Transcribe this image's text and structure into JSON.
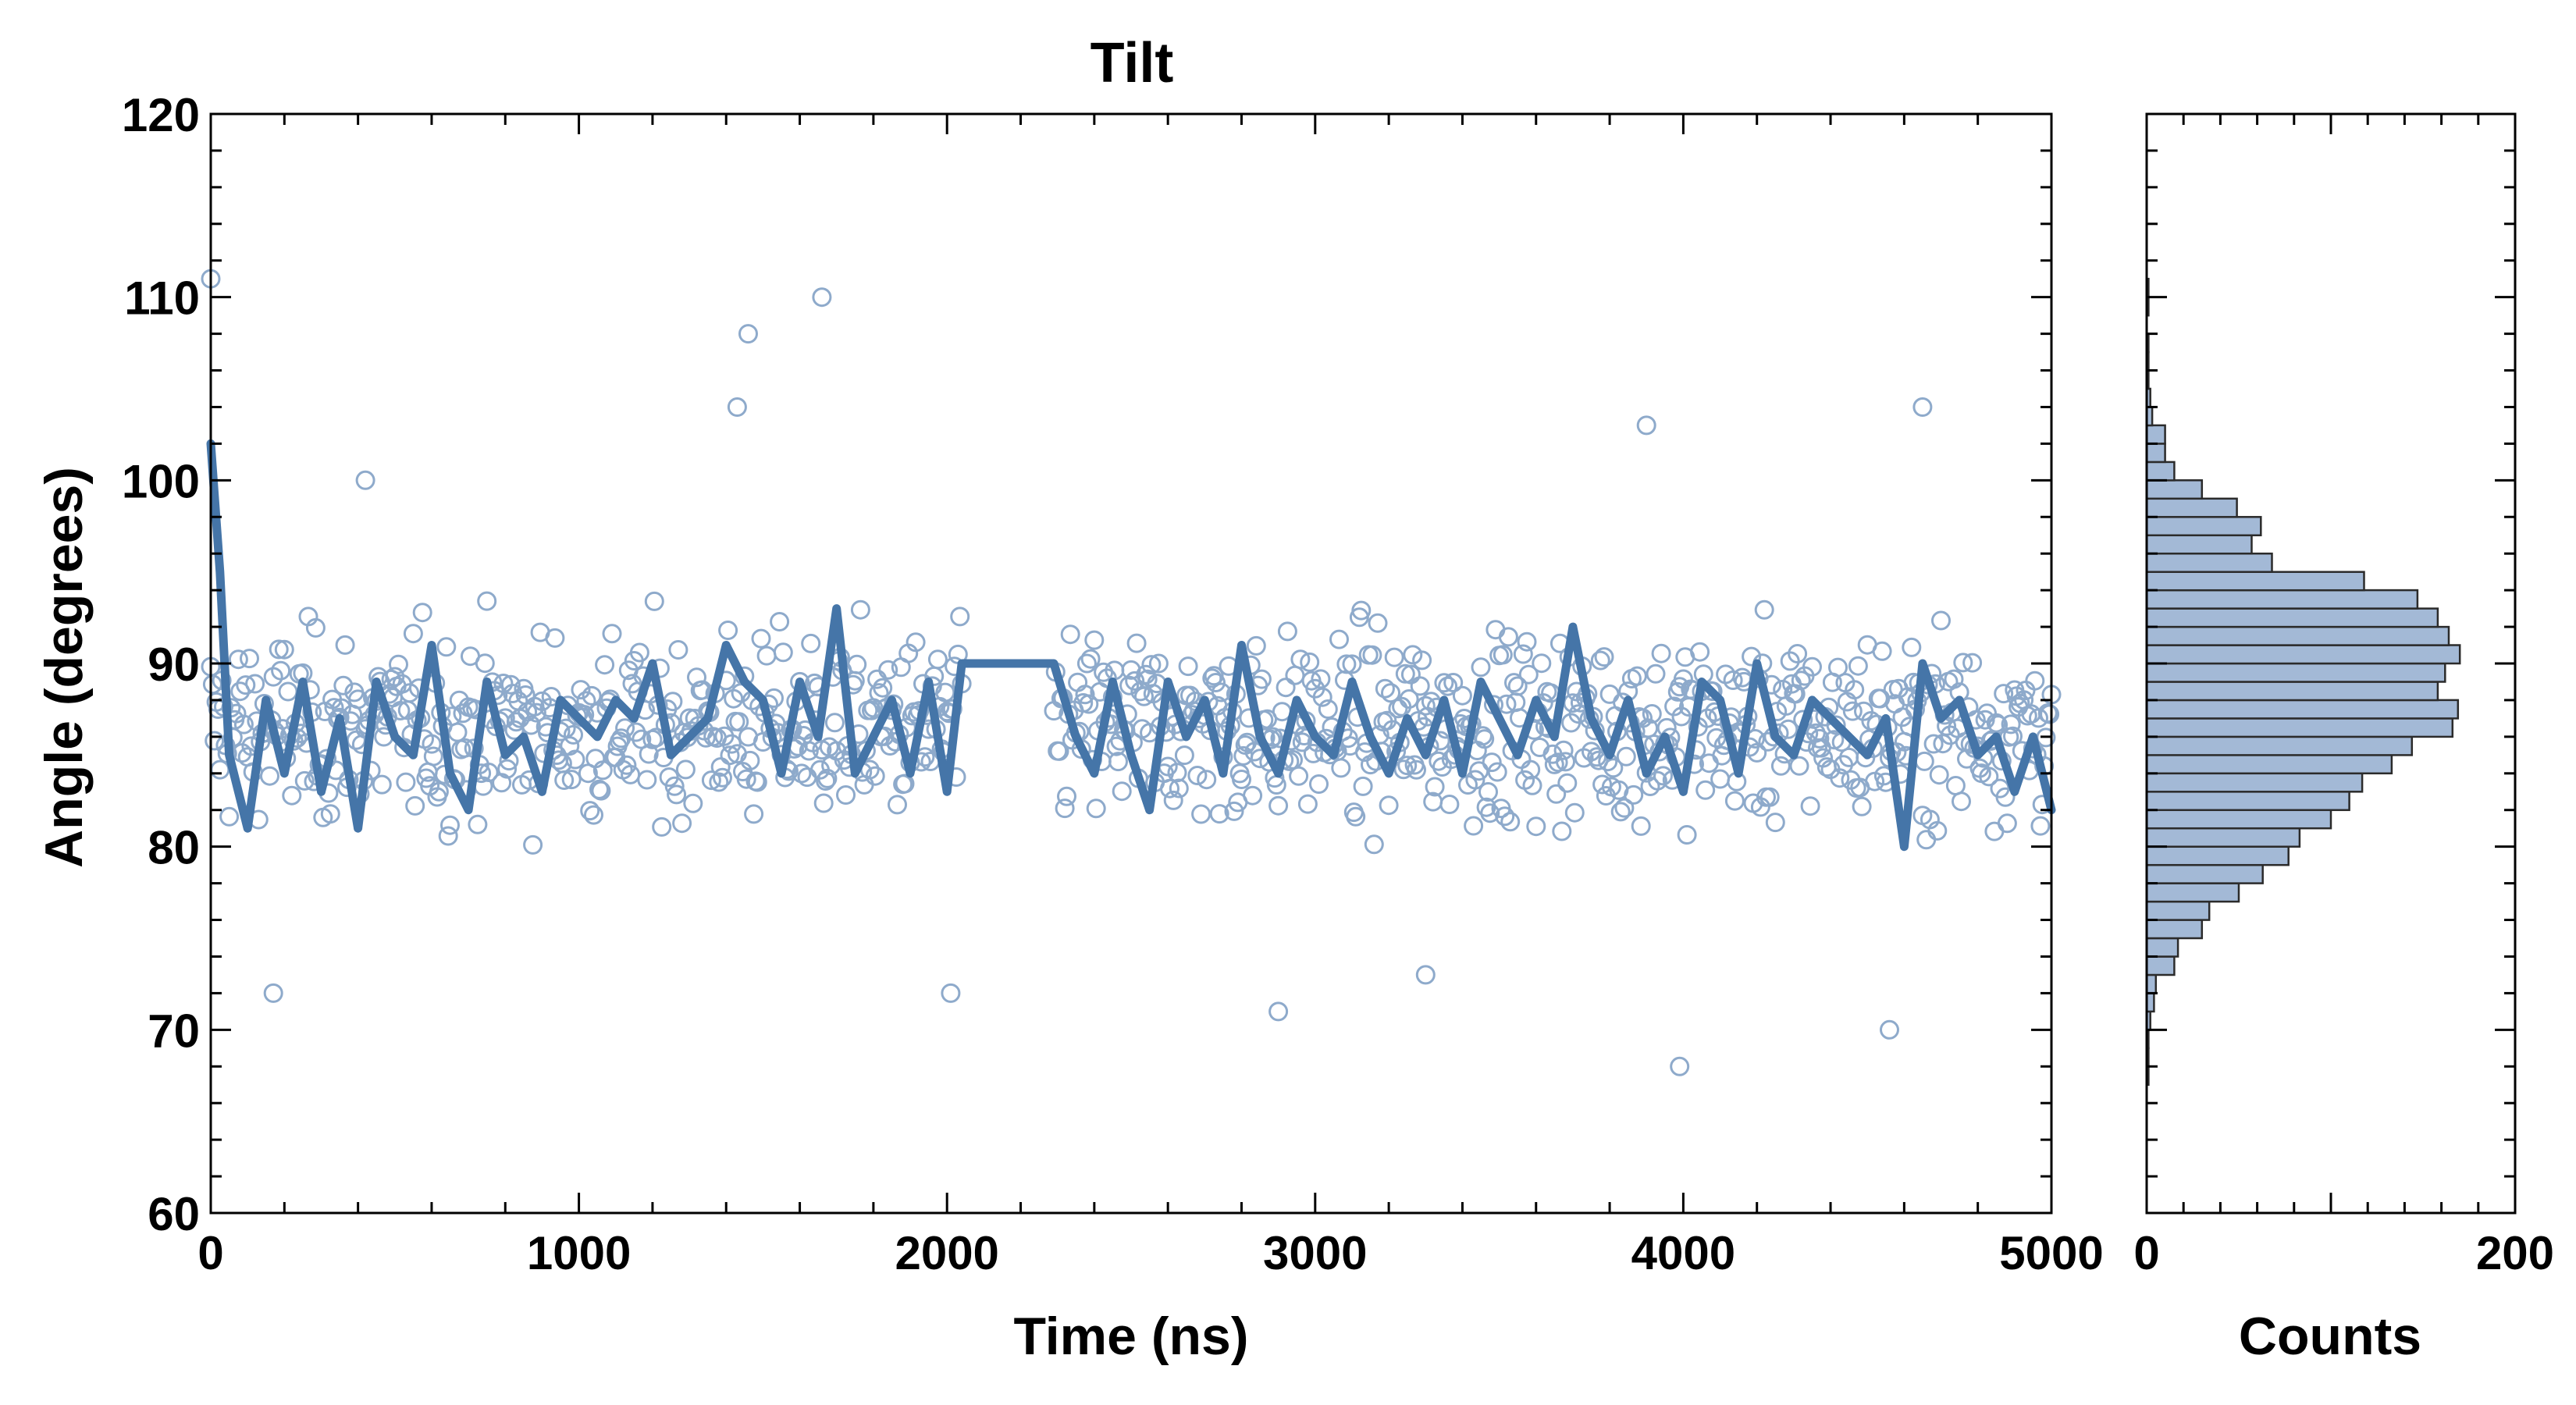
{
  "colors": {
    "scatter_edge": "#8eaacb",
    "line": "#4575a8",
    "hist_fill": "#a3b9d6",
    "hist_edge": "#2b2b2b",
    "axes": "#000000"
  },
  "chart_data": [
    {
      "type": "scatter",
      "title": "Tilt",
      "xlabel": "Time (ns)",
      "ylabel": "Angle (degrees)",
      "xlim": [
        0,
        5000
      ],
      "ylim": [
        60,
        120
      ],
      "x_ticks": [
        "0",
        "1000",
        "2000",
        "3000",
        "4000",
        "5000"
      ],
      "y_ticks": [
        "60",
        "70",
        "80",
        "90",
        "100",
        "110",
        "120"
      ],
      "grid": false,
      "notes": "Dense cloud of open-circle samples roughly every 5 ns with a thick running-average line; no samples between about 2040 and 2290 ns where the average is flat at 90.",
      "series": [
        {
          "style": "markers",
          "marker": "open-circle",
          "points_outliers": [
            [
              0,
              111
            ],
            [
              1460,
              108
            ],
            [
              1660,
              110
            ],
            [
              1430,
              104
            ],
            [
              4650,
              104
            ],
            [
              3990,
              68
            ],
            [
              4560,
              70
            ],
            [
              420,
              100
            ],
            [
              170,
              72
            ],
            [
              2010,
              72
            ],
            [
              2900,
              71
            ],
            [
              3300,
              73
            ],
            [
              3900,
              103
            ]
          ],
          "segments": [
            {
              "x_start": 0,
              "x_end": 2040,
              "step": 5,
              "center": 86.5,
              "spread": 5.5
            },
            {
              "x_start": 2290,
              "x_end": 5000,
              "step": 5,
              "center": 86.5,
              "spread": 5.5
            }
          ]
        },
        {
          "style": "line",
          "x": [
            0,
            25,
            50,
            100,
            150,
            200,
            250,
            300,
            350,
            400,
            450,
            500,
            550,
            600,
            650,
            700,
            750,
            800,
            850,
            900,
            950,
            1000,
            1050,
            1100,
            1150,
            1200,
            1250,
            1300,
            1350,
            1400,
            1450,
            1500,
            1550,
            1600,
            1650,
            1700,
            1750,
            1800,
            1850,
            1900,
            1950,
            2000,
            2040,
            2290,
            2350,
            2400,
            2450,
            2500,
            2550,
            2600,
            2650,
            2700,
            2750,
            2800,
            2850,
            2900,
            2950,
            3000,
            3050,
            3100,
            3150,
            3200,
            3250,
            3300,
            3350,
            3400,
            3450,
            3500,
            3550,
            3600,
            3650,
            3700,
            3750,
            3800,
            3850,
            3900,
            3950,
            4000,
            4050,
            4100,
            4150,
            4200,
            4250,
            4300,
            4350,
            4400,
            4450,
            4500,
            4550,
            4600,
            4650,
            4700,
            4750,
            4800,
            4850,
            4900,
            4950,
            5000
          ],
          "y": [
            102,
            95,
            85,
            81,
            88,
            84,
            89,
            83,
            87,
            81,
            89,
            86,
            85,
            91,
            84,
            82,
            89,
            85,
            86,
            83,
            88,
            87,
            86,
            88,
            87,
            90,
            85,
            86,
            87,
            91,
            89,
            88,
            84,
            89,
            86,
            93,
            84,
            86,
            88,
            84,
            89,
            83,
            90,
            90,
            86,
            84,
            89,
            85,
            82,
            89,
            86,
            88,
            84,
            91,
            86,
            84,
            88,
            86,
            85,
            89,
            86,
            84,
            87,
            85,
            88,
            84,
            89,
            87,
            85,
            88,
            86,
            92,
            87,
            85,
            88,
            84,
            86,
            83,
            89,
            88,
            84,
            90,
            86,
            85,
            88,
            87,
            86,
            85,
            87,
            80,
            90,
            87,
            88,
            85,
            86,
            83,
            86,
            82
          ]
        }
      ]
    },
    {
      "type": "bar",
      "orientation": "horizontal",
      "xlabel": "Counts",
      "ylim": [
        60,
        120
      ],
      "xlim": [
        0,
        200
      ],
      "x_ticks": [
        "0",
        "200"
      ],
      "grid": false,
      "bin_edges": [
        67,
        68,
        69,
        70,
        71,
        72,
        73,
        74,
        75,
        76,
        77,
        78,
        79,
        80,
        81,
        82,
        83,
        84,
        85,
        86,
        87,
        88,
        89,
        90,
        91,
        92,
        93,
        94,
        95,
        96,
        97,
        98,
        99,
        100,
        101,
        102,
        103,
        104,
        105,
        106,
        107,
        108,
        109,
        110,
        111
      ],
      "values": [
        1,
        1,
        1,
        2,
        4,
        5,
        15,
        17,
        30,
        34,
        50,
        63,
        77,
        83,
        100,
        110,
        117,
        133,
        144,
        166,
        169,
        158,
        162,
        170,
        164,
        158,
        147,
        118,
        68,
        57,
        62,
        49,
        30,
        15,
        10,
        10,
        3,
        2,
        1,
        1,
        1,
        0,
        1,
        1
      ]
    }
  ]
}
